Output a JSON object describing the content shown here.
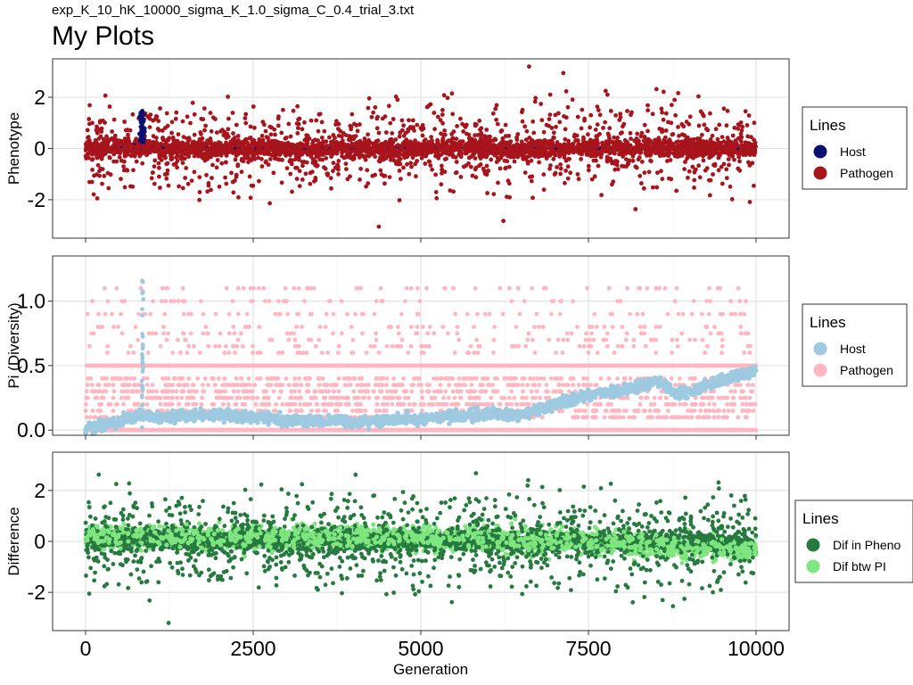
{
  "subtitle": "exp_K_10_hK_10000_sigma_K_1.0_sigma_C_0.4_trial_3.txt",
  "title": "My Plots",
  "chart_data": [
    {
      "type": "scatter",
      "ylabel": "Phenotype",
      "xlim": [
        0,
        10000
      ],
      "ylim": [
        -3.5,
        3.5
      ],
      "x_ticks": [
        0,
        2500,
        5000,
        7500,
        10000
      ],
      "y_ticks": [
        -2,
        0,
        2
      ],
      "y_tick_labels": [
        "-2",
        "0",
        "2"
      ],
      "grid": true,
      "legend": {
        "title": "Lines",
        "placement": "right",
        "entries": [
          {
            "label": "Host",
            "color": "#0a1172"
          },
          {
            "label": "Pathogen",
            "color": "#a8141c"
          }
        ]
      },
      "series": [
        {
          "name": "Host",
          "color": "#0a1172",
          "description_points": [
            [
              0,
              0.02
            ],
            [
              500,
              0.05
            ],
            [
              800,
              0.2
            ],
            [
              850,
              1.5
            ],
            [
              870,
              0.1
            ],
            [
              1000,
              0.05
            ],
            [
              2500,
              0.0
            ],
            [
              5000,
              0.02
            ],
            [
              7500,
              0.0
            ],
            [
              10000,
              0.0
            ]
          ]
        },
        {
          "name": "Pathogen",
          "color": "#a8141c",
          "spread_sd": 0.9,
          "range": [
            -3.2,
            3.2
          ]
        }
      ]
    },
    {
      "type": "scatter",
      "ylabel": "Pi (Diversity)",
      "xlim": [
        0,
        10000
      ],
      "ylim": [
        -0.04,
        1.35
      ],
      "x_ticks": [
        0,
        2500,
        5000,
        7500,
        10000
      ],
      "y_ticks": [
        0.0,
        0.5,
        1.0
      ],
      "y_tick_labels": [
        "0.0",
        "0.5",
        "1.0"
      ],
      "grid": true,
      "legend": {
        "title": "Lines",
        "placement": "right",
        "entries": [
          {
            "label": "Host",
            "color": "#9ecae1"
          },
          {
            "label": "Pathogen",
            "color": "#ffb6c1"
          }
        ]
      },
      "series": [
        {
          "name": "Host",
          "color": "#9ecae1",
          "trend": [
            [
              0,
              0.0
            ],
            [
              500,
              0.08
            ],
            [
              850,
              0.12
            ],
            [
              1000,
              0.1
            ],
            [
              2000,
              0.12
            ],
            [
              3000,
              0.08
            ],
            [
              4000,
              0.06
            ],
            [
              5000,
              0.09
            ],
            [
              6000,
              0.12
            ],
            [
              6500,
              0.12
            ],
            [
              7000,
              0.2
            ],
            [
              7500,
              0.27
            ],
            [
              8000,
              0.3
            ],
            [
              8500,
              0.38
            ],
            [
              8800,
              0.28
            ],
            [
              9000,
              0.3
            ],
            [
              9500,
              0.38
            ],
            [
              10000,
              0.47
            ]
          ],
          "spike": {
            "x": 850,
            "y_max": 1.3
          }
        },
        {
          "name": "Pathogen",
          "color": "#ffb6c1",
          "levels": [
            0.0,
            0.5
          ],
          "range": [
            0.0,
            1.3
          ]
        }
      ]
    },
    {
      "type": "scatter",
      "ylabel": "Difference",
      "xlabel": "Generation",
      "xlim": [
        0,
        10000
      ],
      "ylim": [
        -3.5,
        3.5
      ],
      "x_ticks": [
        0,
        2500,
        5000,
        7500,
        10000
      ],
      "x_tick_labels": [
        "0",
        "2500",
        "5000",
        "7500",
        "10000"
      ],
      "y_ticks": [
        -2,
        0,
        2
      ],
      "y_tick_labels": [
        "-2",
        "0",
        "2"
      ],
      "grid": true,
      "legend": {
        "title": "Lines",
        "placement": "right",
        "entries": [
          {
            "label": "Dif in Pheno",
            "color": "#26793f"
          },
          {
            "label": "Dif btw PI",
            "color": "#7fe57f"
          }
        ]
      },
      "series": [
        {
          "name": "Dif in Pheno",
          "color": "#26793f",
          "spread_sd": 0.9,
          "range": [
            -3.2,
            3.2
          ]
        },
        {
          "name": "Dif btw PI",
          "color": "#7fe57f",
          "trend": [
            [
              0,
              0.2
            ],
            [
              2500,
              0.15
            ],
            [
              5000,
              0.1
            ],
            [
              7500,
              0.0
            ],
            [
              10000,
              -0.3
            ]
          ]
        }
      ]
    }
  ]
}
